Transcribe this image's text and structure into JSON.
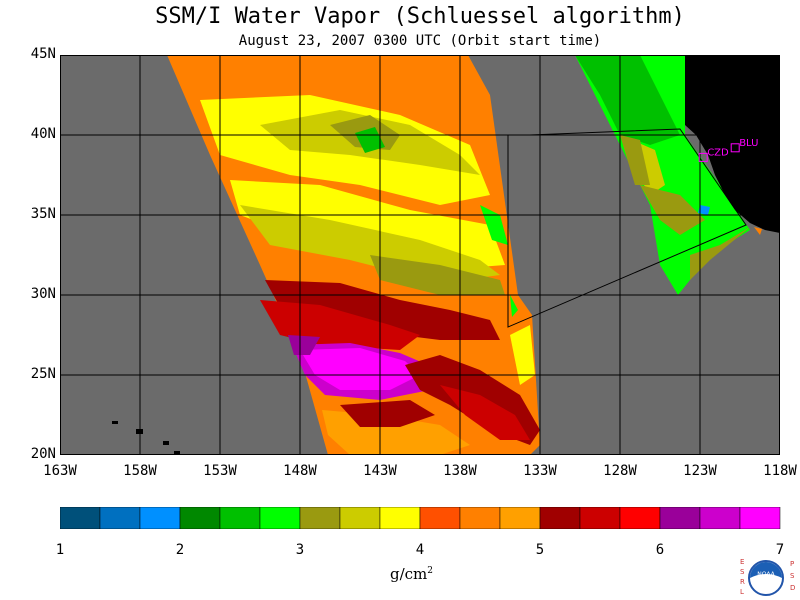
{
  "title": "SSM/I Water Vapor (Schluessel algorithm)",
  "subtitle": "August 23, 2007  0300 UTC  (Orbit start time)",
  "map": {
    "lon_range": [
      -163,
      -118
    ],
    "lat_range": [
      20,
      45
    ],
    "lat_ticks": [
      {
        "value": 45,
        "label": "45N"
      },
      {
        "value": 40,
        "label": "40N"
      },
      {
        "value": 35,
        "label": "35N"
      },
      {
        "value": 30,
        "label": "30N"
      },
      {
        "value": 25,
        "label": "25N"
      },
      {
        "value": 20,
        "label": "20N"
      }
    ],
    "lon_ticks": [
      {
        "value": -163,
        "label": "163W"
      },
      {
        "value": -158,
        "label": "158W"
      },
      {
        "value": -153,
        "label": "153W"
      },
      {
        "value": -148,
        "label": "148W"
      },
      {
        "value": -143,
        "label": "143W"
      },
      {
        "value": -138,
        "label": "138W"
      },
      {
        "value": -133,
        "label": "133W"
      },
      {
        "value": -128,
        "label": "128W"
      },
      {
        "value": -123,
        "label": "123W"
      },
      {
        "value": -118,
        "label": "118W"
      }
    ],
    "stations": [
      {
        "label": "CZD",
        "lon": -122.8,
        "lat": 38.6
      },
      {
        "label": "BLU",
        "lon": -120.8,
        "lat": 39.2
      }
    ],
    "colors": {
      "no_data": "#6b6b6b",
      "land": "#000000",
      "grid": "#000000",
      "station": "#ff00ff"
    }
  },
  "colorbar": {
    "colors": [
      "#00507a",
      "#0070c0",
      "#0090ff",
      "#008800",
      "#00c000",
      "#00ff00",
      "#9a9a10",
      "#cccc00",
      "#ffff00",
      "#ff5000",
      "#ff8000",
      "#ffa000",
      "#a00000",
      "#cc0000",
      "#ff0000",
      "#9a009a",
      "#cc00cc",
      "#ff00ff"
    ],
    "tick_labels": [
      "1",
      "2",
      "3",
      "4",
      "5",
      "6",
      "7"
    ],
    "units_base": "g/cm",
    "units_exp": "2"
  },
  "logo": {
    "left_text": "ESRL",
    "right_text": "PSD",
    "center_text": "NOAA"
  }
}
